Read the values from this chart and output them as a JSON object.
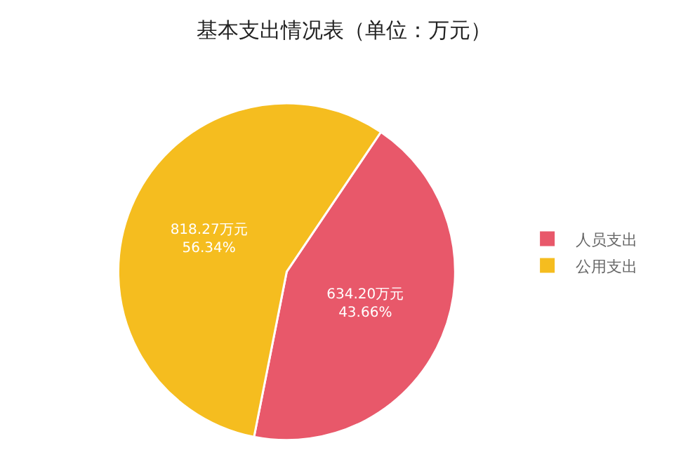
{
  "chart_data": {
    "type": "pie",
    "title": "基本支出情况表（单位：万元）",
    "categories": [
      "人员支出",
      "公用支出"
    ],
    "values": [
      634.2,
      818.27
    ],
    "colors": [
      "#e8586a",
      "#f5bd1f"
    ],
    "value_labels": [
      "634.20万元\n43.66%",
      "818.27万元\n56.34%"
    ],
    "legend": "right"
  }
}
